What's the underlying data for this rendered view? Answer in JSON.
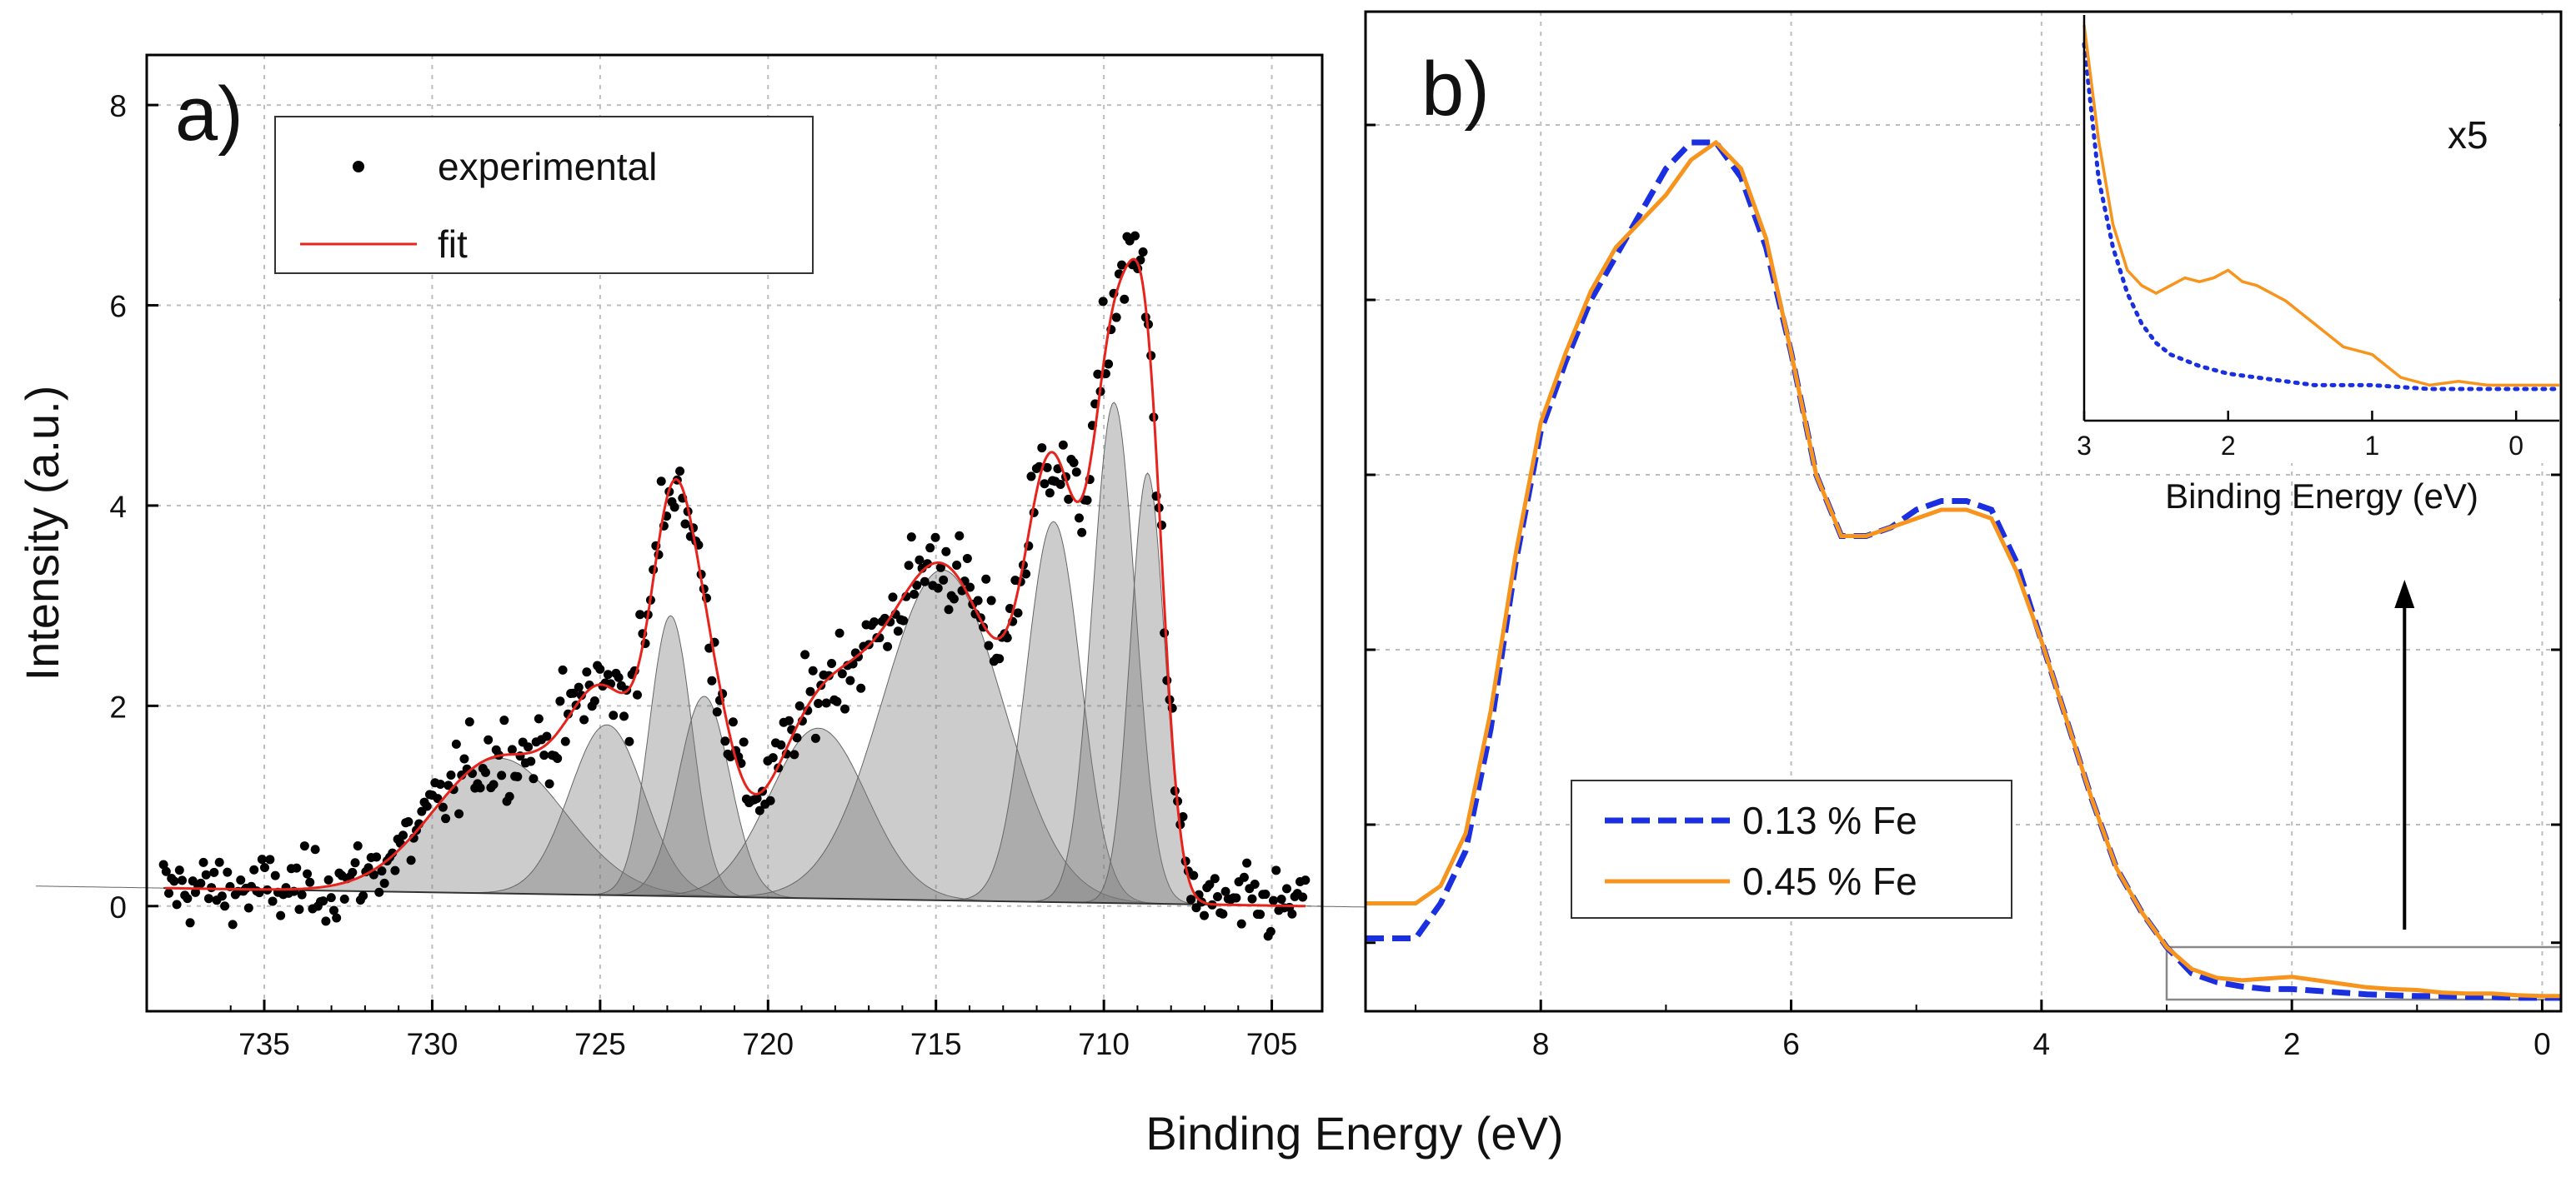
{
  "figure": {
    "shared_xlabel": "Binding Energy (eV)",
    "ylabel": "Intensity (a.u.)"
  },
  "colors": {
    "experimental": "#000000",
    "fit": "#e8231b",
    "fe013": "#1a2fe0",
    "fe045": "#f7941d",
    "peak_fill": "#7a7a7a",
    "grid": "#bdbdbd",
    "axis": "#000000"
  },
  "chart_data": [
    {
      "type": "scatter",
      "panel_label": "a)",
      "xlabel": "Binding Energy (eV)",
      "ylabel": "Intensity (a.u.)",
      "xlim": [
        738.5,
        703.5
      ],
      "ylim": [
        -1.05,
        8.5
      ],
      "x_ticks": [
        735,
        730,
        725,
        720,
        715,
        710,
        705
      ],
      "y_ticks": [
        0,
        2,
        4,
        6,
        8
      ],
      "grid": true,
      "legend": {
        "position": "top-left",
        "entries": [
          {
            "label": "experimental",
            "marker": "dot"
          },
          {
            "label": "fit",
            "marker": "line"
          }
        ]
      },
      "background": {
        "start": [
          738,
          0.18
        ],
        "end": [
          704,
          0.0
        ]
      },
      "components": [
        {
          "center": 728.0,
          "amplitude": 1.35,
          "fwhm": 4.6
        },
        {
          "center": 724.8,
          "amplitude": 1.7,
          "fwhm": 2.6
        },
        {
          "center": 722.9,
          "amplitude": 2.8,
          "fwhm": 1.5
        },
        {
          "center": 721.9,
          "amplitude": 2.0,
          "fwhm": 1.8
        },
        {
          "center": 718.5,
          "amplitude": 1.7,
          "fwhm": 3.4
        },
        {
          "center": 714.8,
          "amplitude": 3.3,
          "fwhm": 4.2
        },
        {
          "center": 711.5,
          "amplitude": 3.8,
          "fwhm": 1.9
        },
        {
          "center": 709.7,
          "amplitude": 5.0,
          "fwhm": 1.5
        },
        {
          "center": 708.7,
          "amplitude": 4.3,
          "fwhm": 1.2
        }
      ],
      "experimental_noise": {
        "points": 430,
        "x_range": [
          738,
          704
        ],
        "sigma": 0.35
      }
    },
    {
      "type": "line",
      "panel_label": "b)",
      "xlabel": "Binding Energy (eV)",
      "xlim": [
        9.4,
        -0.15
      ],
      "ylim": [
        0,
        1
      ],
      "x_ticks": [
        8,
        6,
        4,
        2,
        0
      ],
      "grid": true,
      "legend": {
        "position": "bottom-center",
        "entries": [
          {
            "label": "0.13 % Fe",
            "style": "dashed"
          },
          {
            "label": "0.45 % Fe",
            "style": "solid"
          }
        ]
      },
      "series": [
        {
          "name": "0.13 % Fe",
          "x": [
            9.4,
            9.2,
            9.0,
            8.8,
            8.6,
            8.4,
            8.2,
            8.0,
            7.8,
            7.6,
            7.4,
            7.2,
            7.0,
            6.8,
            6.6,
            6.4,
            6.2,
            6.0,
            5.8,
            5.6,
            5.4,
            5.2,
            5.0,
            4.8,
            4.6,
            4.4,
            4.2,
            4.0,
            3.8,
            3.6,
            3.4,
            3.2,
            3.0,
            2.8,
            2.6,
            2.4,
            2.2,
            2.0,
            1.8,
            1.6,
            1.4,
            1.2,
            1.0,
            0.8,
            0.6,
            0.4,
            0.2,
            0.0,
            -0.15
          ],
          "y": [
            0.07,
            0.07,
            0.07,
            0.11,
            0.17,
            0.31,
            0.5,
            0.65,
            0.73,
            0.8,
            0.85,
            0.9,
            0.95,
            0.98,
            0.98,
            0.94,
            0.86,
            0.74,
            0.6,
            0.53,
            0.53,
            0.54,
            0.56,
            0.57,
            0.57,
            0.56,
            0.5,
            0.41,
            0.32,
            0.23,
            0.15,
            0.1,
            0.06,
            0.03,
            0.02,
            0.015,
            0.012,
            0.012,
            0.01,
            0.008,
            0.006,
            0.005,
            0.004,
            0.004,
            0.003,
            0.003,
            0.002,
            0.002,
            0.002
          ]
        },
        {
          "name": "0.45 % Fe",
          "x": [
            9.4,
            9.2,
            9.0,
            8.8,
            8.6,
            8.4,
            8.2,
            8.0,
            7.8,
            7.6,
            7.4,
            7.2,
            7.0,
            6.8,
            6.6,
            6.4,
            6.2,
            6.0,
            5.8,
            5.6,
            5.4,
            5.2,
            5.0,
            4.8,
            4.6,
            4.4,
            4.2,
            4.0,
            3.8,
            3.6,
            3.4,
            3.2,
            3.0,
            2.8,
            2.6,
            2.4,
            2.2,
            2.0,
            1.8,
            1.6,
            1.4,
            1.2,
            1.0,
            0.8,
            0.6,
            0.4,
            0.2,
            0.0,
            -0.15
          ],
          "y": [
            0.11,
            0.11,
            0.11,
            0.13,
            0.19,
            0.33,
            0.51,
            0.66,
            0.74,
            0.81,
            0.86,
            0.89,
            0.92,
            0.96,
            0.98,
            0.95,
            0.87,
            0.74,
            0.6,
            0.53,
            0.53,
            0.54,
            0.55,
            0.56,
            0.56,
            0.55,
            0.49,
            0.41,
            0.32,
            0.23,
            0.15,
            0.1,
            0.06,
            0.035,
            0.025,
            0.022,
            0.024,
            0.026,
            0.022,
            0.018,
            0.014,
            0.012,
            0.011,
            0.008,
            0.007,
            0.007,
            0.005,
            0.004,
            0.004
          ]
        }
      ],
      "zoom_box": {
        "x_range": [
          3,
          -0.15
        ],
        "y_range": [
          0,
          0.06
        ]
      },
      "inset": {
        "xlabel": "Binding Energy (eV)",
        "annotation": "x5",
        "xlim": [
          3,
          -0.3
        ],
        "ylim": [
          0,
          1
        ],
        "x_ticks": [
          3,
          2,
          1,
          0
        ],
        "series": [
          {
            "name": "0.13 % Fe",
            "style": "dotted",
            "x": [
              3.0,
              2.9,
              2.8,
              2.7,
              2.6,
              2.5,
              2.4,
              2.2,
              2.0,
              1.8,
              1.6,
              1.4,
              1.2,
              1.0,
              0.8,
              0.6,
              0.4,
              0.2,
              0.0,
              -0.3
            ],
            "y": [
              0.95,
              0.6,
              0.42,
              0.3,
              0.22,
              0.17,
              0.14,
              0.11,
              0.09,
              0.08,
              0.07,
              0.06,
              0.06,
              0.06,
              0.055,
              0.05,
              0.05,
              0.05,
              0.05,
              0.05
            ]
          },
          {
            "name": "0.45 % Fe",
            "style": "solid",
            "x": [
              3.0,
              2.9,
              2.8,
              2.7,
              2.6,
              2.5,
              2.4,
              2.3,
              2.2,
              2.1,
              2.0,
              1.9,
              1.8,
              1.6,
              1.4,
              1.2,
              1.0,
              0.8,
              0.6,
              0.4,
              0.2,
              0.0,
              -0.3
            ],
            "y": [
              1.0,
              0.7,
              0.48,
              0.36,
              0.32,
              0.3,
              0.32,
              0.34,
              0.33,
              0.34,
              0.36,
              0.33,
              0.32,
              0.28,
              0.22,
              0.16,
              0.14,
              0.08,
              0.06,
              0.07,
              0.06,
              0.06,
              0.06
            ]
          }
        ]
      },
      "arrow": {
        "from": [
          1.1,
          0.08
        ],
        "to": [
          1.1,
          0.48
        ]
      }
    }
  ]
}
